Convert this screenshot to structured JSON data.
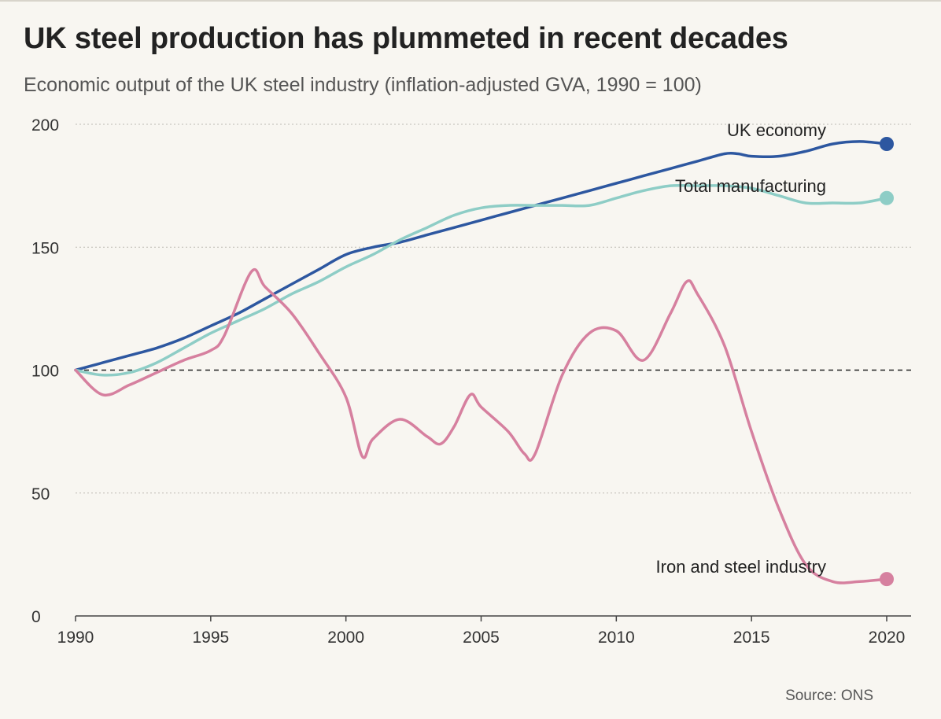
{
  "header": {
    "title": "UK steel production has plummeted in recent decades",
    "subtitle": "Economic output of the UK steel industry (inflation-adjusted GVA, 1990 = 100)"
  },
  "footer": {
    "source": "Source: ONS"
  },
  "chart_data": {
    "type": "line",
    "title": "UK steel production has plummeted in recent decades",
    "subtitle": "Economic output of the UK steel industry (inflation-adjusted GVA, 1990 = 100)",
    "xlabel": "",
    "ylabel": "",
    "xlim": [
      1990,
      2021
    ],
    "ylim": [
      0,
      200
    ],
    "xticks": [
      1990,
      1995,
      2000,
      2005,
      2010,
      2015,
      2020
    ],
    "yticks": [
      0,
      50,
      100,
      150,
      200
    ],
    "baseline": 100,
    "grid": true,
    "series": [
      {
        "name": "UK economy",
        "color": "#2d57a0",
        "x": [
          1990,
          1991,
          1992,
          1993,
          1994,
          1995,
          1996,
          1997,
          1998,
          1999,
          2000,
          2001,
          2002,
          2003,
          2004,
          2005,
          2006,
          2007,
          2008,
          2009,
          2010,
          2011,
          2012,
          2013,
          2014,
          2014.5,
          2015,
          2016,
          2017,
          2018,
          2019,
          2020
        ],
        "y": [
          100,
          103,
          106,
          109,
          113,
          118,
          123,
          129,
          135,
          141,
          147,
          150,
          152,
          155,
          158,
          161,
          164,
          167,
          170,
          173,
          176,
          179,
          182,
          185,
          188,
          188,
          187,
          187,
          189,
          192,
          193,
          192
        ]
      },
      {
        "name": "Total manufacturing",
        "color": "#8ecdc6",
        "x": [
          1990,
          1991,
          1992,
          1993,
          1994,
          1995,
          1996,
          1997,
          1998,
          1999,
          2000,
          2001,
          2002,
          2003,
          2004,
          2005,
          2006,
          2007,
          2008,
          2009,
          2010,
          2011,
          2012,
          2013,
          2014,
          2015,
          2016,
          2017,
          2018,
          2019,
          2020
        ],
        "y": [
          100,
          98,
          99,
          103,
          109,
          115,
          120,
          125,
          131,
          136,
          142,
          147,
          153,
          158,
          163,
          166,
          167,
          167,
          167,
          167,
          170,
          173,
          175,
          175,
          175,
          174,
          171,
          168,
          168,
          168,
          170
        ]
      },
      {
        "name": "Iron and steel industry",
        "color": "#d6809f",
        "x": [
          1990,
          1991,
          1992,
          1993,
          1994,
          1995,
          1995.5,
          1996.5,
          1997,
          1998,
          1999,
          2000,
          2000.6,
          2001,
          2002,
          2003,
          2003.5,
          2004,
          2004.6,
          2005,
          2006,
          2006.6,
          2007,
          2008,
          2009,
          2010,
          2011,
          2012,
          2012.6,
          2013,
          2014,
          2015,
          2016,
          2017,
          2018,
          2019,
          2020
        ],
        "y": [
          100,
          90,
          94,
          99,
          104,
          108,
          114,
          140,
          134,
          123,
          107,
          89,
          65,
          72,
          80,
          73,
          70,
          77,
          90,
          85,
          75,
          66,
          66,
          98,
          115,
          116,
          104,
          123,
          136,
          131,
          110,
          75,
          44,
          21,
          14,
          14,
          15
        ]
      }
    ]
  }
}
